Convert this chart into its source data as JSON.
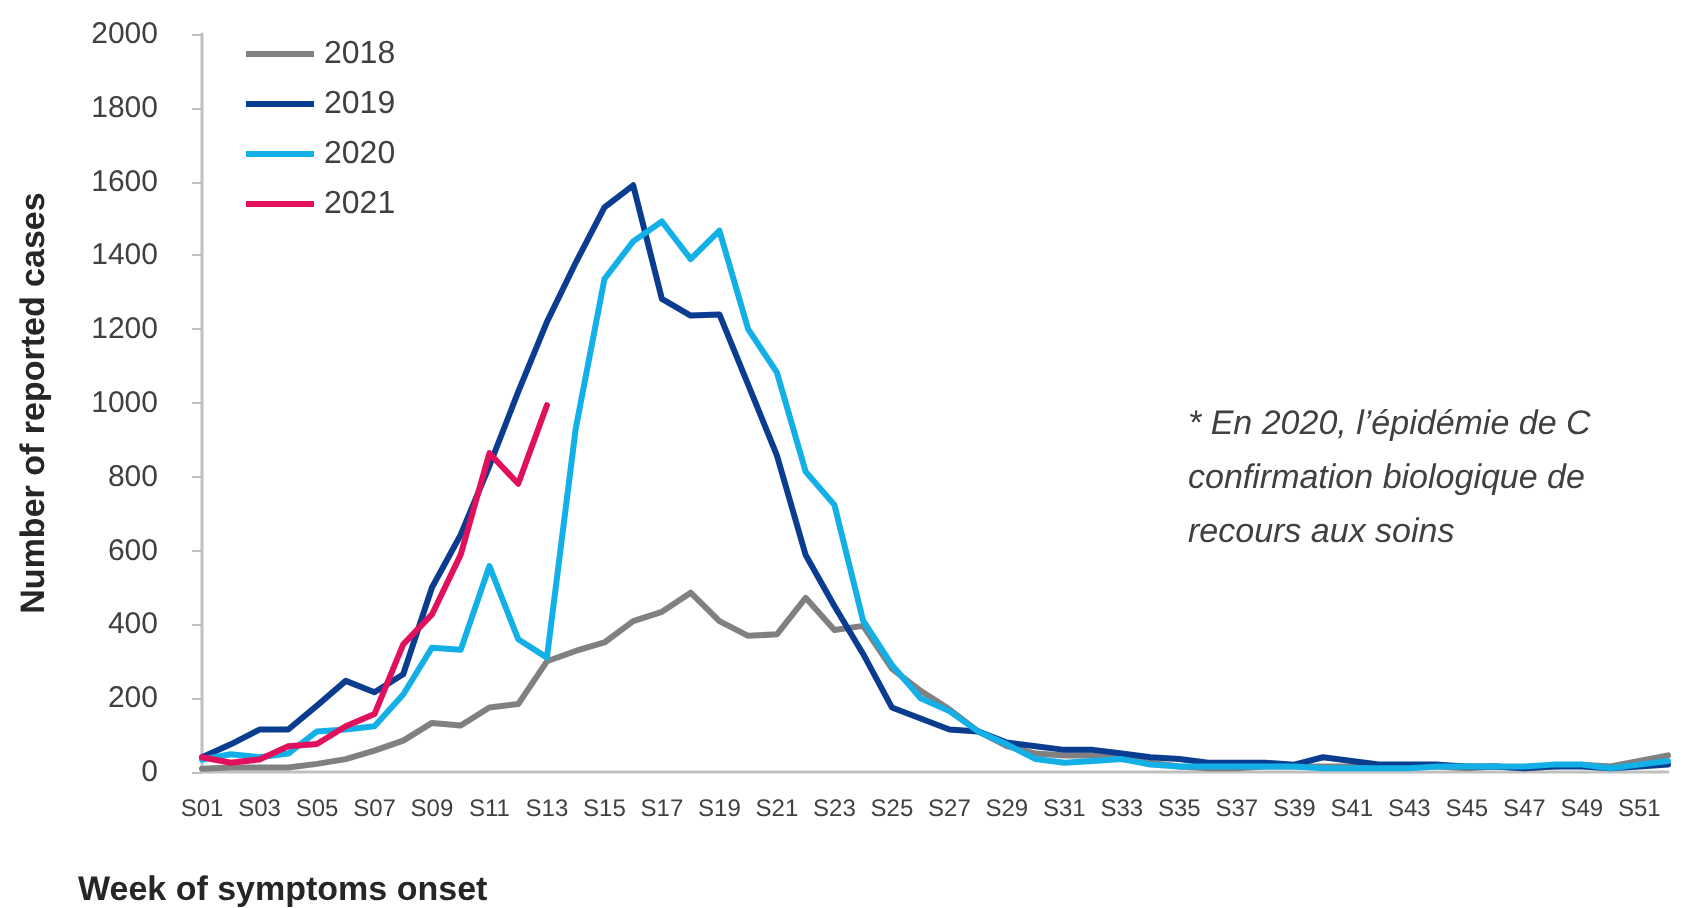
{
  "chart_data": {
    "type": "line",
    "xlabel": "Week of symptoms onset",
    "ylabel": "Number of reported cases",
    "categories": [
      "S01",
      null,
      "S03",
      null,
      "S05",
      null,
      "S07",
      null,
      "S09",
      null,
      "S11",
      null,
      "S13",
      null,
      "S15",
      null,
      "S17",
      null,
      "S19",
      null,
      "S21",
      null,
      "S23",
      null,
      "S25",
      null,
      "S27",
      null,
      "S29",
      null,
      "S31",
      null,
      "S33",
      null,
      "S35",
      null,
      "S37",
      null,
      "S39",
      null,
      "S41",
      null,
      "S43",
      null,
      "S45",
      null,
      "S47",
      null,
      "S49",
      null,
      "S51",
      null
    ],
    "series": [
      {
        "name": "2018",
        "color": "#808080",
        "values": [
          9,
          12,
          12,
          12,
          22,
          35,
          58,
          85,
          133,
          126,
          175,
          184,
          300,
          328,
          351,
          409,
          434,
          486,
          409,
          369,
          373,
          472,
          385,
          396,
          280,
          220,
          170,
          110,
          70,
          50,
          45,
          45,
          35,
          25,
          15,
          10,
          10,
          15,
          15,
          15,
          15,
          15,
          15,
          15,
          10,
          15,
          10,
          15,
          20,
          15,
          30,
          45
        ]
      },
      {
        "name": "2019",
        "color": "#0a3d8f",
        "values": [
          40,
          75,
          115,
          115,
          180,
          247,
          216,
          265,
          500,
          643,
          830,
          1030,
          1220,
          1380,
          1530,
          1590,
          1282,
          1237,
          1240,
          1050,
          858,
          588,
          450,
          320,
          175,
          145,
          115,
          110,
          80,
          70,
          60,
          60,
          50,
          40,
          35,
          25,
          25,
          25,
          20,
          40,
          30,
          20,
          20,
          20,
          15,
          15,
          10,
          15,
          15,
          10,
          15,
          20
        ]
      },
      {
        "name": "2020",
        "color": "#12b0e6",
        "values": [
          34,
          48,
          40,
          50,
          110,
          115,
          124,
          210,
          337,
          331,
          558,
          360,
          310,
          930,
          1336,
          1438,
          1492,
          1390,
          1467,
          1200,
          1083,
          814,
          724,
          410,
          290,
          200,
          165,
          110,
          75,
          35,
          25,
          30,
          35,
          20,
          15,
          15,
          15,
          15,
          15,
          10,
          10,
          10,
          10,
          15,
          15,
          15,
          15,
          20,
          20,
          10,
          20,
          30
        ]
      },
      {
        "name": "2021",
        "color": "#e0105c",
        "values": [
          40,
          25,
          34,
          70,
          76,
          124,
          157,
          346,
          427,
          589,
          864,
          781,
          994,
          null,
          null,
          null,
          null,
          null,
          null,
          null,
          null,
          null,
          null,
          null,
          null,
          null,
          null,
          null,
          null,
          null,
          null,
          null,
          null,
          null,
          null,
          null,
          null,
          null,
          null,
          null,
          null,
          null,
          null,
          null,
          null,
          null,
          null,
          null,
          null,
          null,
          null,
          null
        ]
      }
    ],
    "ylim": [
      0,
      2000
    ],
    "yticks": [
      0,
      200,
      400,
      600,
      800,
      1000,
      1200,
      1400,
      1600,
      1800,
      2000
    ],
    "annotations": [
      "* En 2020, l’épidémie de C",
      "confirmation biologique de",
      "recours aux soins"
    ],
    "legend": "top left",
    "grid": false,
    "marker": "none",
    "line_style": "solid"
  }
}
